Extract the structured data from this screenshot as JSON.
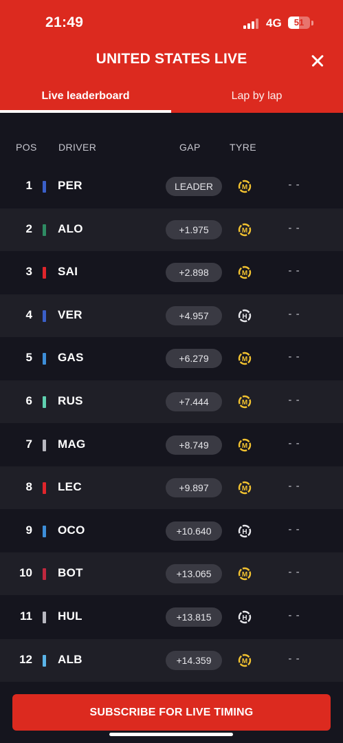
{
  "status": {
    "time": "21:49",
    "network": "4G",
    "battery": "51",
    "battery_level": 0.51
  },
  "header": {
    "title": "UNITED STATES LIVE"
  },
  "tabs": [
    {
      "label": "Live leaderboard",
      "active": true
    },
    {
      "label": "Lap by lap",
      "active": false
    }
  ],
  "columns": {
    "pos": "POS",
    "driver": "DRIVER",
    "gap": "GAP",
    "tyre": "TYRE"
  },
  "tyre_compounds": {
    "M": {
      "letter": "M",
      "color": "#f2c230",
      "icon": "medium-tyre-icon"
    },
    "H": {
      "letter": "H",
      "color": "#e8e8ec",
      "icon": "hard-tyre-icon"
    }
  },
  "rows": [
    {
      "pos": "1",
      "driver": "PER",
      "gap": "LEADER",
      "tyre": "M",
      "interval": "- -",
      "team_color": "#3a5fc8"
    },
    {
      "pos": "2",
      "driver": "ALO",
      "gap": "+1.975",
      "tyre": "M",
      "interval": "- -",
      "team_color": "#2e8b63"
    },
    {
      "pos": "3",
      "driver": "SAI",
      "gap": "+2.898",
      "tyre": "M",
      "interval": "- -",
      "team_color": "#e0252b"
    },
    {
      "pos": "4",
      "driver": "VER",
      "gap": "+4.957",
      "tyre": "H",
      "interval": "- -",
      "team_color": "#3a5fc8"
    },
    {
      "pos": "5",
      "driver": "GAS",
      "gap": "+6.279",
      "tyre": "M",
      "interval": "- -",
      "team_color": "#3d8ed8"
    },
    {
      "pos": "6",
      "driver": "RUS",
      "gap": "+7.444",
      "tyre": "M",
      "interval": "- -",
      "team_color": "#5fd0b0"
    },
    {
      "pos": "7",
      "driver": "MAG",
      "gap": "+8.749",
      "tyre": "M",
      "interval": "- -",
      "team_color": "#b8b8c0"
    },
    {
      "pos": "8",
      "driver": "LEC",
      "gap": "+9.897",
      "tyre": "M",
      "interval": "- -",
      "team_color": "#e0252b"
    },
    {
      "pos": "9",
      "driver": "OCO",
      "gap": "+10.640",
      "tyre": "H",
      "interval": "- -",
      "team_color": "#3d8ed8"
    },
    {
      "pos": "10",
      "driver": "BOT",
      "gap": "+13.065",
      "tyre": "M",
      "interval": "- -",
      "team_color": "#c0283e"
    },
    {
      "pos": "11",
      "driver": "HUL",
      "gap": "+13.815",
      "tyre": "H",
      "interval": "- -",
      "team_color": "#b8b8c0"
    },
    {
      "pos": "12",
      "driver": "ALB",
      "gap": "+14.359",
      "tyre": "M",
      "interval": "- -",
      "team_color": "#5ab4e8"
    }
  ],
  "subscribe": {
    "label": "SUBSCRIBE FOR LIVE TIMING"
  }
}
